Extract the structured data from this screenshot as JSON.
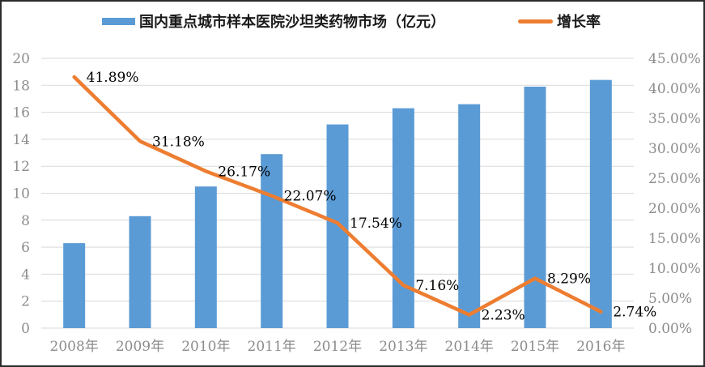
{
  "legend": {
    "bars_label": "国内重点城市样本医院沙坦类药物市场（亿元）",
    "line_label": "增长率"
  },
  "colors": {
    "bar": "#5B9BD5",
    "line": "#ED7D31",
    "grid": "#D9D9D9",
    "axis_text": "#8C8C8C",
    "data_label_text": "#000000"
  },
  "chart_data": {
    "type": "bar",
    "subtype": "bar-line-combo",
    "categories": [
      "2008年",
      "2009年",
      "2010年",
      "2011年",
      "2012年",
      "2013年",
      "2014年",
      "2015年",
      "2016年"
    ],
    "series": [
      {
        "name": "国内重点城市样本医院沙坦类药物市场（亿元）",
        "type": "bar",
        "axis": "left",
        "values": [
          6.3,
          8.3,
          10.5,
          12.9,
          15.1,
          16.3,
          16.6,
          17.9,
          18.4
        ]
      },
      {
        "name": "增长率",
        "type": "line",
        "axis": "right",
        "values": [
          41.89,
          31.18,
          26.17,
          22.07,
          17.54,
          7.16,
          2.23,
          8.29,
          2.74
        ],
        "labels": [
          "41.89%",
          "31.18%",
          "26.17%",
          "22.07%",
          "17.54%",
          "7.16%",
          "2.23%",
          "8.29%",
          "2.74%"
        ]
      }
    ],
    "left_axis": {
      "min": 0,
      "max": 20,
      "step": 2,
      "ticks": [
        "0",
        "2",
        "4",
        "6",
        "8",
        "10",
        "12",
        "14",
        "16",
        "18",
        "20"
      ]
    },
    "right_axis": {
      "min": 0,
      "max": 45,
      "step": 5,
      "ticks": [
        "0.00%",
        "5.00%",
        "10.00%",
        "15.00%",
        "20.00%",
        "25.00%",
        "30.00%",
        "35.00%",
        "40.00%",
        "45.00%"
      ]
    },
    "grid": true,
    "legend_position": "top"
  }
}
